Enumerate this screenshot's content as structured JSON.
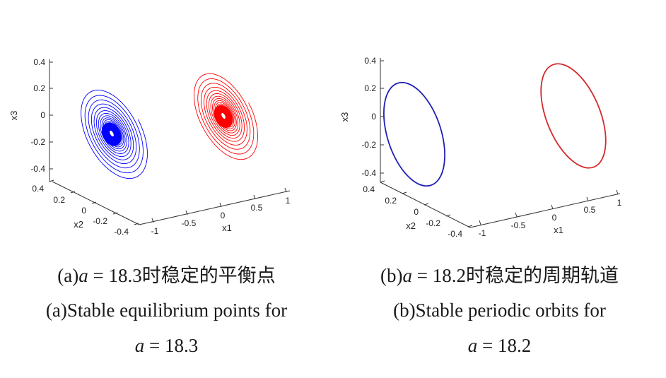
{
  "chart_data": [
    {
      "type": "line",
      "plot": "3d",
      "panel": "a",
      "xlabel": "x1",
      "ylabel": "x2",
      "zlabel": "x3",
      "x1_ticks": [
        "-1",
        "-0.5",
        "0",
        "0.5",
        "1"
      ],
      "x2_ticks": [
        "0.4",
        "0.2",
        "0",
        "-0.2",
        "-0.4"
      ],
      "x3_ticks": [
        "0.4",
        "0.2",
        "0",
        "-0.2",
        "-0.4"
      ],
      "x1_range": [
        -1,
        1
      ],
      "x2_range": [
        -0.4,
        0.4
      ],
      "x3_range": [
        -0.4,
        0.4
      ],
      "series": [
        {
          "color": "#0000ff",
          "kind": "spiral-to-equilibrium",
          "equilibrium": [
            -0.9,
            0.3,
            -0.1
          ]
        },
        {
          "color": "#ff0000",
          "kind": "spiral-to-equilibrium",
          "equilibrium": [
            0.4,
            0.3,
            0.0
          ]
        }
      ],
      "caption_cn": {
        "prefix": "(a)",
        "var": "a",
        "eq": " = 18.3",
        "text": "时稳定的平衡点"
      },
      "caption_en_line1": "(a)Stable equilibrium points for",
      "caption_en_line2": {
        "var": "a",
        "eq": " = 18.3"
      }
    },
    {
      "type": "line",
      "plot": "3d",
      "panel": "b",
      "xlabel": "x1",
      "ylabel": "x2",
      "zlabel": "x3",
      "x1_ticks": [
        "-1",
        "-0.5",
        "0",
        "0.5",
        "1"
      ],
      "x2_ticks": [
        "0.4",
        "0.2",
        "0",
        "-0.2",
        "-0.4"
      ],
      "x3_ticks": [
        "0.4",
        "0.2",
        "0",
        "-0.2",
        "-0.4"
      ],
      "x1_range": [
        -1,
        1
      ],
      "x2_range": [
        -0.4,
        0.4
      ],
      "x3_range": [
        -0.4,
        0.4
      ],
      "series": [
        {
          "color": "#1f1fb4",
          "kind": "periodic-orbit",
          "center": [
            -0.9,
            0.3,
            -0.05
          ]
        },
        {
          "color": "#d42a2a",
          "kind": "periodic-orbit",
          "center": [
            0.4,
            0.3,
            0.05
          ]
        }
      ],
      "caption_cn": {
        "prefix": "(b)",
        "var": "a",
        "eq": " = 18.2",
        "text": "时稳定的周期轨道"
      },
      "caption_en_line1": "(b)Stable periodic orbits for",
      "caption_en_line2": {
        "var": "a",
        "eq": " = 18.2"
      }
    }
  ]
}
